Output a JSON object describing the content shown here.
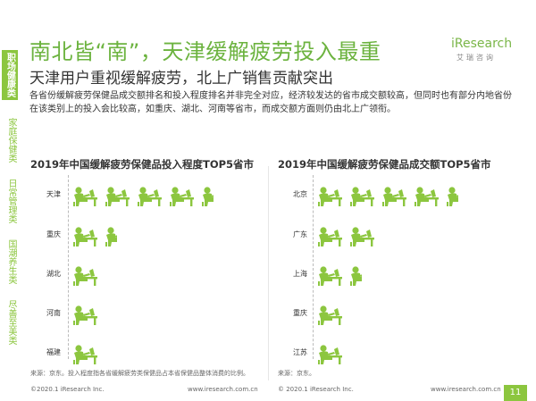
{
  "sidebar": {
    "active": "职场健康类",
    "items": [
      "家庭保健类",
      "日常管理类",
      "国潮养生类",
      "尽善至美类"
    ]
  },
  "title": "南北皆“南”，天津缓解疲劳投入最重",
  "logo": {
    "text": "iResearch",
    "sub": "艾瑞咨询"
  },
  "subtitle": "天津用户重视缓解疲劳，北上广销售贡献突出",
  "description": "各省份缓解疲劳保健品成交额排名和投入程度排名并非完全对应，经济较发达的省市成交额较高，但同时也有部分内地省份在该类别上的投入会比较高，如重庆、湖北、河南等省市，而成交额方面则仍由北上广领衔。",
  "colors": {
    "accent": "#8cc63f",
    "title": "#6cb33f"
  },
  "chart_left": {
    "title": "2019年中国缓解疲劳保健品投入程度TOP5省市",
    "source": "来源：京东。投入程度指各省缓解疲劳类保健品占本省保健品整体消费的比例。"
  },
  "chart_right": {
    "title": "2019年中国缓解疲劳保健品成交额TOP5省市",
    "source": "来源：京东。"
  },
  "chart_data": [
    {
      "type": "pictograph",
      "title": "2019年中国缓解疲劳保健品投入程度TOP5省市",
      "categories": [
        "天津",
        "重庆",
        "湖北",
        "河南",
        "福建"
      ],
      "values": [
        4.5,
        1.5,
        1.05,
        1.0,
        1.0
      ],
      "icon": "person-at-desk-icon"
    },
    {
      "type": "pictograph",
      "title": "2019年中国缓解疲劳保健品成交额TOP5省市",
      "categories": [
        "北京",
        "广东",
        "上海",
        "重庆",
        "江苏"
      ],
      "values": [
        4.5,
        2.0,
        1.5,
        1.0,
        1.0
      ],
      "icon": "person-at-desk-icon"
    }
  ],
  "footer": {
    "copyright_left": "©2020.1 iResearch Inc.",
    "url_left": "www.iresearch.com.cn",
    "copyright_right": "© 2020.1 iResearch Inc.",
    "url_right": "www.iresearch.com.cn",
    "page": "11"
  }
}
